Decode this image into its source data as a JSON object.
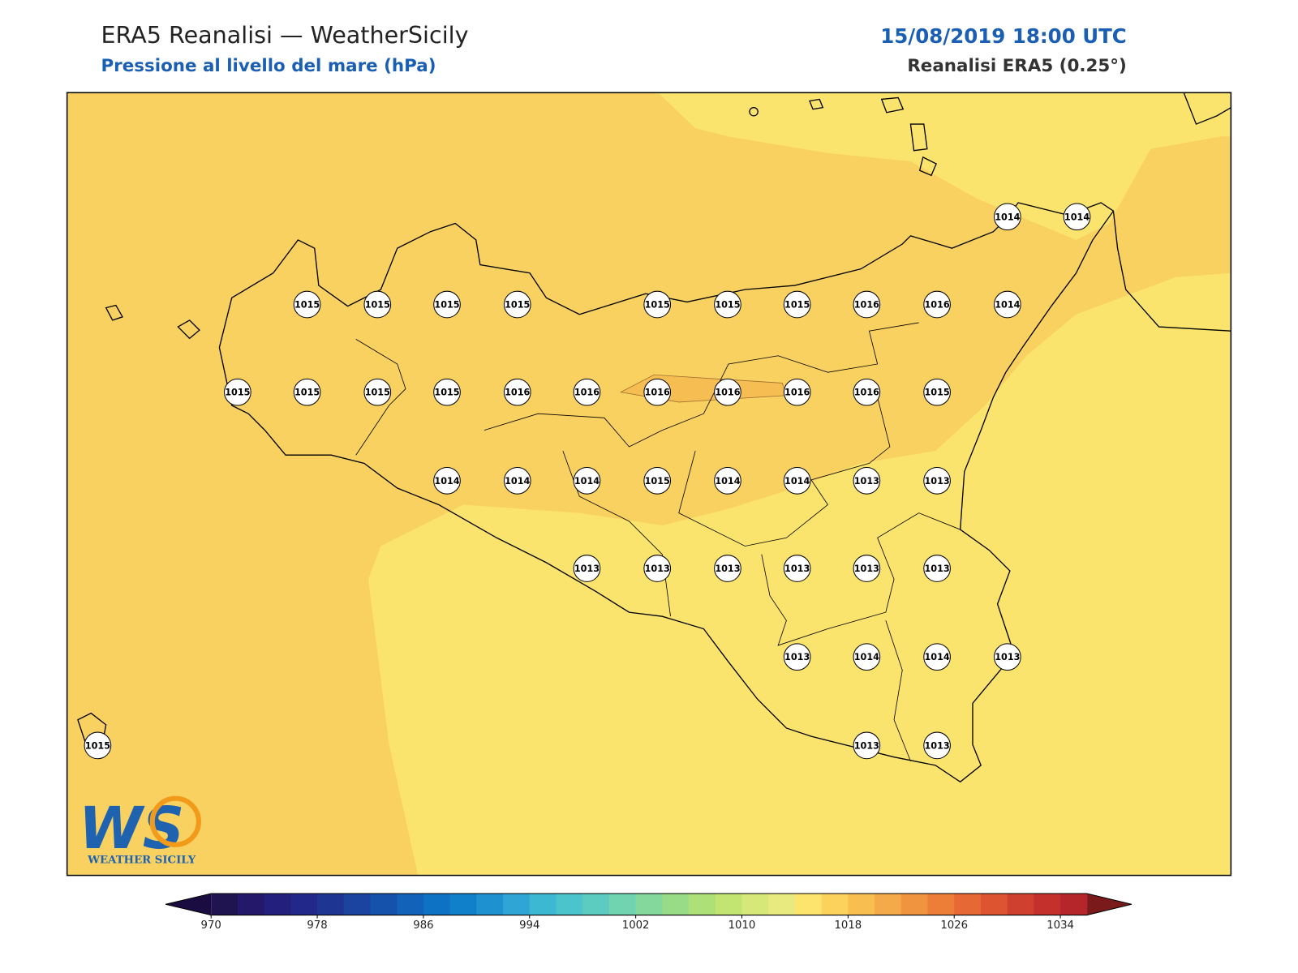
{
  "header": {
    "title": "ERA5 Reanalisi — WeatherSicily",
    "subtitle": "Pressione al livello del mare (hPa)",
    "datetime": "15/08/2019 18:00 UTC",
    "source": "Reanalisi ERA5 (0.25°)"
  },
  "stations": [
    1014,
    1014,
    1015,
    1015,
    1015,
    1015,
    1015,
    1015,
    1015,
    1016,
    1016,
    1014,
    1015,
    1015,
    1015,
    1015,
    1016,
    1016,
    1016,
    1016,
    1016,
    1016,
    1015,
    1014,
    1014,
    1014,
    1015,
    1014,
    1014,
    1013,
    1013,
    1013,
    1013,
    1013,
    1013,
    1013,
    1013,
    1013,
    1014,
    1014,
    1013,
    1015,
    1013,
    1013
  ],
  "map_fill": {
    "low": "#fbe46e",
    "mid": "#f9d160",
    "high": "#f6be52"
  },
  "colorbar": {
    "range": [
      970,
      1036
    ],
    "ticks": [
      970,
      978,
      986,
      994,
      1002,
      1010,
      1018,
      1026,
      1034
    ],
    "colors": [
      "#1f1450",
      "#23186a",
      "#231f7d",
      "#22288a",
      "#1e3592",
      "#1b44a0",
      "#1552ac",
      "#1162b8",
      "#0e72c4",
      "#1080ca",
      "#1e92d0",
      "#2ea5d4",
      "#3cb8d2",
      "#4cc4cc",
      "#5cccc0",
      "#70d4b0",
      "#84d89c",
      "#98dc88",
      "#aee078",
      "#c2e470",
      "#d6e878",
      "#e8ea80",
      "#fde46c",
      "#fcd25c",
      "#f8bf50",
      "#f4aa48",
      "#f09440",
      "#ec7e38",
      "#e66834",
      "#dc5430",
      "#d0402e",
      "#c4302c",
      "#b4262a"
    ],
    "under": "#1a0c40",
    "over": "#7a1a1a"
  },
  "logo": {
    "mark": "WS",
    "text": "WEATHER SICILY"
  }
}
